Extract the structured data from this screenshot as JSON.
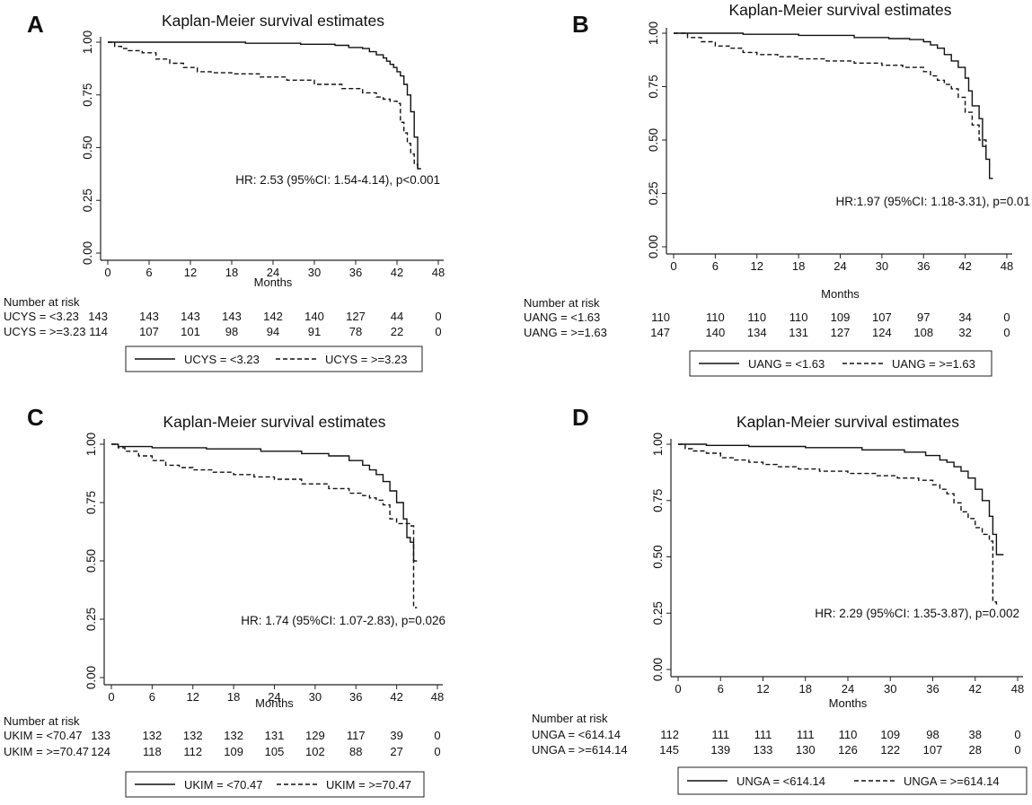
{
  "chart_data": [
    {
      "panel": "A",
      "type": "line",
      "title": "Kaplan-Meier survival estimates",
      "xlabel": "Months",
      "ylabel": "",
      "xlim": [
        0,
        48
      ],
      "ylim": [
        0,
        1
      ],
      "xticks": [
        "0",
        "6",
        "12",
        "18",
        "24",
        "30",
        "36",
        "42",
        "48"
      ],
      "yticks": [
        "0.00",
        "0.25",
        "0.50",
        "0.75",
        "1.00"
      ],
      "annotation": "HR: 2.53 (95%CI: 1.54-4.14), p<0.001",
      "risk_table": {
        "heading": "Number at risk",
        "rows": [
          {
            "label": "UCYS = <3.23",
            "values": [
              "143",
              "143",
              "143",
              "143",
              "142",
              "140",
              "127",
              "44",
              "0"
            ]
          },
          {
            "label": "UCYS = >=3.23",
            "values": [
              "114",
              "107",
              "101",
              "98",
              "94",
              "91",
              "78",
              "22",
              "0"
            ]
          }
        ]
      },
      "series": [
        {
          "name": "UCYS = <3.23",
          "style": "solid",
          "x": [
            0,
            20,
            28,
            33,
            35,
            37,
            38,
            39,
            40,
            40.5,
            41,
            41.5,
            42,
            42.5,
            43,
            43.5,
            44,
            44.5,
            45,
            45.5
          ],
          "y": [
            1,
            0.995,
            0.99,
            0.985,
            0.975,
            0.97,
            0.955,
            0.94,
            0.925,
            0.91,
            0.895,
            0.88,
            0.86,
            0.84,
            0.8,
            0.75,
            0.67,
            0.55,
            0.4,
            0.4
          ]
        },
        {
          "name": "UCYS = >=3.23",
          "style": "dashed",
          "x": [
            0,
            1,
            2,
            3,
            5,
            7,
            9,
            11,
            13,
            15,
            18,
            22,
            26,
            30,
            34,
            37,
            39,
            40,
            41,
            42,
            42.5,
            43,
            43.5,
            44,
            44.5,
            45
          ],
          "y": [
            1,
            0.98,
            0.97,
            0.96,
            0.95,
            0.92,
            0.9,
            0.88,
            0.86,
            0.855,
            0.85,
            0.835,
            0.82,
            0.8,
            0.78,
            0.76,
            0.74,
            0.73,
            0.72,
            0.71,
            0.62,
            0.57,
            0.52,
            0.47,
            0.42,
            0.39
          ]
        }
      ],
      "legend": [
        "UCYS = <3.23",
        "UCYS = >=3.23"
      ]
    },
    {
      "panel": "B",
      "type": "line",
      "title": "Kaplan-Meier survival estimates",
      "xlabel": "Months",
      "ylabel": "",
      "xlim": [
        0,
        48
      ],
      "ylim": [
        0,
        1
      ],
      "xticks": [
        "0",
        "6",
        "12",
        "18",
        "24",
        "30",
        "36",
        "42",
        "48"
      ],
      "yticks": [
        "0.00",
        "0.25",
        "0.50",
        "0.75",
        "1.00"
      ],
      "annotation": "HR:1.97 (95%CI: 1.18-3.31), p=0.01",
      "risk_table": {
        "heading": "Number at risk",
        "rows": [
          {
            "label": "UANG = <1.63",
            "values": [
              "110",
              "110",
              "110",
              "110",
              "109",
              "107",
              "97",
              "34",
              "0"
            ]
          },
          {
            "label": "UANG = >=1.63",
            "values": [
              "147",
              "140",
              "134",
              "131",
              "127",
              "124",
              "108",
              "32",
              "0"
            ]
          }
        ]
      },
      "series": [
        {
          "name": "UANG = <1.63",
          "style": "solid",
          "x": [
            0,
            10,
            18,
            26,
            31,
            34,
            36,
            37,
            38,
            39,
            40,
            41,
            42,
            42.5,
            43,
            44,
            44.5,
            45,
            45.5,
            46
          ],
          "y": [
            1,
            0.995,
            0.99,
            0.98,
            0.975,
            0.97,
            0.96,
            0.945,
            0.93,
            0.9,
            0.87,
            0.84,
            0.79,
            0.73,
            0.66,
            0.6,
            0.47,
            0.41,
            0.32,
            0.32
          ]
        },
        {
          "name": "UANG = >=1.63",
          "style": "dashed",
          "x": [
            0,
            2,
            4,
            6,
            8,
            10,
            12,
            15,
            18,
            22,
            26,
            30,
            33,
            36,
            37,
            38,
            39,
            40,
            41,
            42,
            43,
            44,
            45
          ],
          "y": [
            1,
            0.98,
            0.96,
            0.94,
            0.93,
            0.91,
            0.9,
            0.89,
            0.88,
            0.87,
            0.86,
            0.85,
            0.84,
            0.82,
            0.8,
            0.78,
            0.76,
            0.74,
            0.7,
            0.63,
            0.57,
            0.5,
            0.43
          ]
        }
      ],
      "legend": [
        "UANG = <1.63",
        "UANG = >=1.63"
      ]
    },
    {
      "panel": "C",
      "type": "line",
      "title": "Kaplan-Meier survival estimates",
      "xlabel": "Months",
      "ylabel": "",
      "xlim": [
        0,
        48
      ],
      "ylim": [
        0,
        1
      ],
      "xticks": [
        "0",
        "6",
        "12",
        "18",
        "24",
        "30",
        "36",
        "42",
        "48"
      ],
      "yticks": [
        "0.00",
        "0.25",
        "0.50",
        "0.75",
        "1.00"
      ],
      "annotation": "HR: 1.74 (95%CI: 1.07-2.83), p=0.026",
      "risk_table": {
        "heading": "Number at risk",
        "rows": [
          {
            "label": "UKIM = <70.47",
            "values": [
              "133",
              "132",
              "132",
              "132",
              "131",
              "129",
              "117",
              "39",
              "0"
            ]
          },
          {
            "label": "UKIM = >=70.47",
            "values": [
              "124",
              "118",
              "112",
              "109",
              "105",
              "102",
              "88",
              "27",
              "0"
            ]
          }
        ]
      },
      "series": [
        {
          "name": "UKIM = <70.47",
          "style": "solid",
          "x": [
            0,
            1,
            6,
            14,
            22,
            28,
            32,
            35,
            37,
            38,
            39,
            40,
            41,
            42,
            43,
            43.5,
            44,
            44.5,
            45
          ],
          "y": [
            1,
            0.99,
            0.985,
            0.98,
            0.97,
            0.96,
            0.95,
            0.93,
            0.91,
            0.89,
            0.87,
            0.84,
            0.8,
            0.75,
            0.68,
            0.6,
            0.58,
            0.5,
            0.5
          ]
        },
        {
          "name": "UKIM = >=70.47",
          "style": "dashed",
          "x": [
            0,
            1,
            2,
            4,
            6,
            8,
            10,
            12,
            15,
            18,
            21,
            24,
            28,
            32,
            35,
            37,
            38,
            39,
            40,
            41,
            42,
            43,
            44,
            44.5,
            45
          ],
          "y": [
            1,
            0.985,
            0.97,
            0.95,
            0.93,
            0.91,
            0.9,
            0.89,
            0.88,
            0.87,
            0.86,
            0.85,
            0.83,
            0.81,
            0.79,
            0.78,
            0.77,
            0.76,
            0.74,
            0.68,
            0.66,
            0.66,
            0.65,
            0.3,
            0.3
          ]
        }
      ],
      "legend": [
        "UKIM = <70.47",
        "UKIM = >=70.47"
      ]
    },
    {
      "panel": "D",
      "type": "line",
      "title": "Kaplan-Meier survival estimates",
      "xlabel": "Months",
      "ylabel": "",
      "xlim": [
        0,
        48
      ],
      "ylim": [
        0,
        1
      ],
      "xticks": [
        "0",
        "6",
        "12",
        "18",
        "24",
        "30",
        "36",
        "42",
        "48"
      ],
      "yticks": [
        "0.00",
        "0.25",
        "0.50",
        "0.75",
        "1.00"
      ],
      "annotation": "HR: 2.29 (95%CI: 1.35-3.87), p=0.002",
      "risk_table": {
        "heading": "Number at risk",
        "rows": [
          {
            "label": "UNGA = <614.14",
            "values": [
              "112",
              "111",
              "111",
              "111",
              "110",
              "109",
              "98",
              "38",
              "0"
            ]
          },
          {
            "label": "UNGA = >=614.14",
            "values": [
              "145",
              "139",
              "133",
              "130",
              "126",
              "122",
              "107",
              "28",
              "0"
            ]
          }
        ]
      },
      "series": [
        {
          "name": "UNGA = <614.14",
          "style": "solid",
          "x": [
            0,
            4,
            10,
            18,
            26,
            32,
            35,
            37,
            38,
            39,
            40,
            41,
            42,
            43,
            44,
            44.5,
            45,
            46
          ],
          "y": [
            1,
            0.995,
            0.99,
            0.985,
            0.975,
            0.965,
            0.95,
            0.93,
            0.92,
            0.9,
            0.88,
            0.85,
            0.8,
            0.75,
            0.68,
            0.6,
            0.51,
            0.51
          ]
        },
        {
          "name": "UNGA = >=614.14",
          "style": "dashed",
          "x": [
            0,
            1,
            2,
            4,
            6,
            8,
            10,
            12,
            14,
            17,
            20,
            24,
            28,
            31,
            34,
            36,
            37,
            38,
            39,
            40,
            41,
            42,
            43,
            44,
            44.5,
            45
          ],
          "y": [
            1,
            0.98,
            0.97,
            0.96,
            0.94,
            0.93,
            0.92,
            0.91,
            0.9,
            0.89,
            0.88,
            0.87,
            0.86,
            0.85,
            0.84,
            0.82,
            0.8,
            0.78,
            0.74,
            0.7,
            0.67,
            0.63,
            0.6,
            0.57,
            0.3,
            0.28
          ]
        }
      ],
      "legend": [
        "UNGA = <614.14",
        "UNGA = >=614.14"
      ]
    }
  ]
}
